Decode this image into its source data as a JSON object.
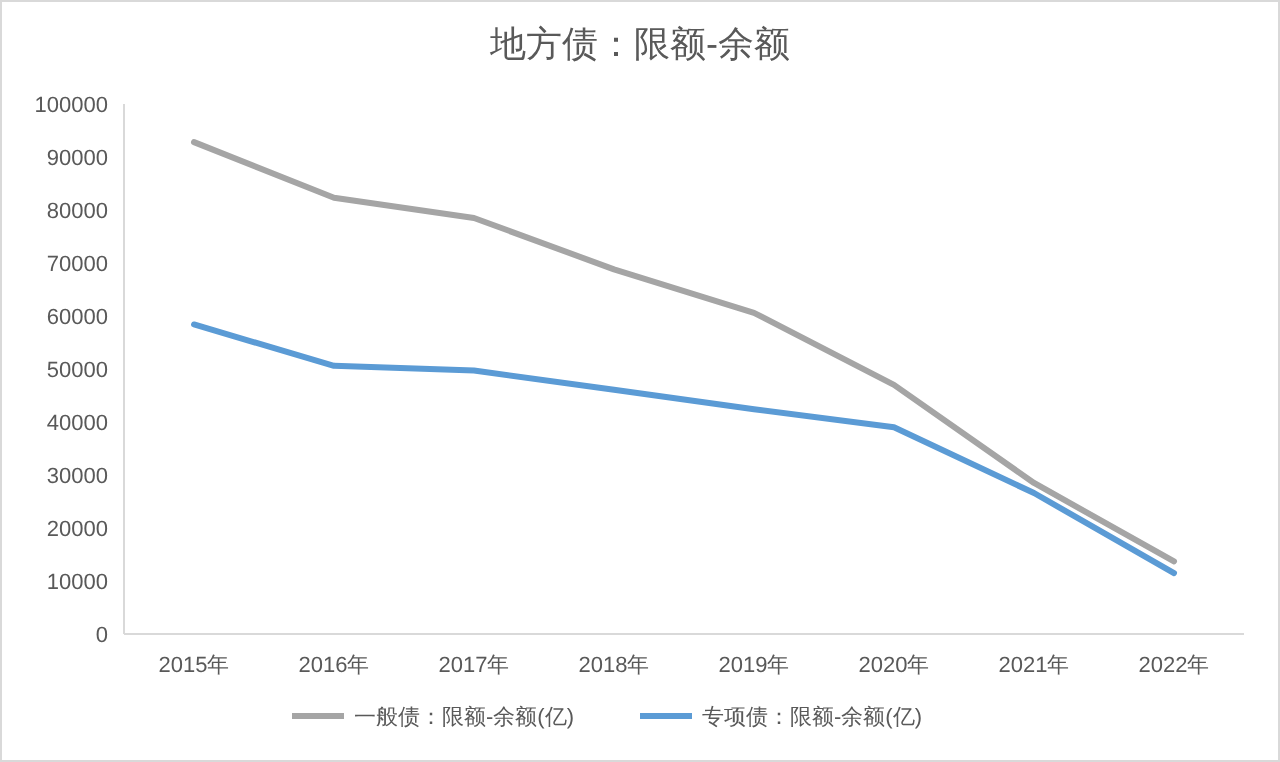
{
  "chart_data": {
    "type": "line",
    "title": "地方债：限额-余额",
    "categories": [
      "2015年",
      "2016年",
      "2017年",
      "2018年",
      "2019年",
      "2020年",
      "2021年",
      "2022年"
    ],
    "series": [
      {
        "name": "一般债：限额-余额(亿)",
        "color": "#a5a5a5",
        "values": [
          92800,
          82300,
          78500,
          68800,
          60600,
          47000,
          28500,
          13700
        ]
      },
      {
        "name": "专项债：限额-余额(亿)",
        "color": "#5b9bd5",
        "values": [
          58400,
          50600,
          49700,
          46100,
          42400,
          39000,
          26600,
          11500
        ]
      }
    ],
    "ylim": [
      0,
      100000
    ],
    "yticks": [
      0,
      10000,
      20000,
      30000,
      40000,
      50000,
      60000,
      70000,
      80000,
      90000,
      100000
    ],
    "grid": false,
    "legend": "bottom",
    "marker": "none",
    "line_style": "solid"
  }
}
